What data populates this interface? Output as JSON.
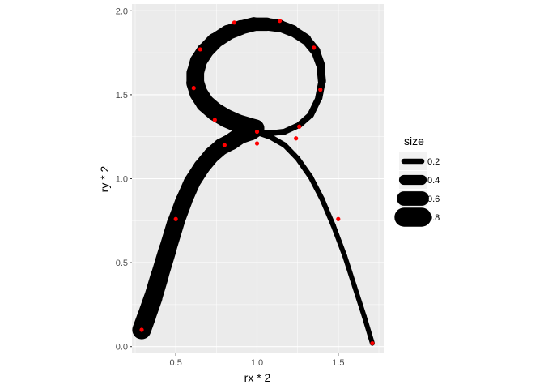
{
  "chart_data": {
    "type": "line",
    "xlabel": "rx * 2",
    "ylabel": "ry * 2",
    "xlim": [
      0.23,
      1.78
    ],
    "ylim": [
      -0.04,
      2.04
    ],
    "x_ticks": [
      0.5,
      1.0,
      1.5
    ],
    "x_tick_labels": [
      "0.5",
      "1.0",
      "1.5"
    ],
    "y_ticks": [
      0.0,
      0.5,
      1.0,
      1.5,
      2.0
    ],
    "y_tick_labels": [
      "0.0",
      "0.5",
      "1.0",
      "1.5",
      "2.0"
    ],
    "grid": true,
    "background": "#ebebeb",
    "grid_major_color": "#ffffff",
    "line_color": "#000000",
    "point_color": "#ff0000",
    "size_legend": {
      "title": "size",
      "position": "right",
      "entries": [
        {
          "label": "0.2",
          "size": 0.2
        },
        {
          "label": "0.4",
          "size": 0.4
        },
        {
          "label": "0.6",
          "size": 0.6
        },
        {
          "label": "0.8",
          "size": 0.8
        }
      ]
    },
    "path": {
      "x": [
        0.29,
        0.32,
        0.36,
        0.4,
        0.45,
        0.5,
        0.55,
        0.6,
        0.66,
        0.72,
        0.78,
        0.84,
        0.9,
        0.96,
        0.99,
        0.95,
        0.88,
        0.81,
        0.74,
        0.68,
        0.64,
        0.62,
        0.62,
        0.64,
        0.68,
        0.74,
        0.82,
        0.9,
        0.98,
        1.06,
        1.14,
        1.22,
        1.3,
        1.36,
        1.39,
        1.4,
        1.38,
        1.33,
        1.26,
        1.17,
        1.08,
        1.02,
        1.08,
        1.17,
        1.25,
        1.33,
        1.4,
        1.47,
        1.54,
        1.6,
        1.66,
        1.71
      ],
      "y": [
        0.1,
        0.18,
        0.29,
        0.42,
        0.58,
        0.74,
        0.87,
        0.98,
        1.07,
        1.14,
        1.19,
        1.22,
        1.26,
        1.28,
        1.3,
        1.31,
        1.33,
        1.36,
        1.4,
        1.45,
        1.51,
        1.57,
        1.63,
        1.7,
        1.76,
        1.82,
        1.87,
        1.9,
        1.92,
        1.92,
        1.91,
        1.88,
        1.83,
        1.76,
        1.68,
        1.58,
        1.48,
        1.38,
        1.32,
        1.28,
        1.27,
        1.27,
        1.25,
        1.2,
        1.12,
        1.01,
        0.88,
        0.72,
        0.54,
        0.36,
        0.18,
        0.02
      ],
      "size": [
        0.8,
        0.79,
        0.78,
        0.76,
        0.74,
        0.72,
        0.7,
        0.69,
        0.68,
        0.68,
        0.69,
        0.7,
        0.72,
        0.74,
        0.75,
        0.76,
        0.77,
        0.77,
        0.77,
        0.77,
        0.76,
        0.75,
        0.73,
        0.71,
        0.69,
        0.66,
        0.63,
        0.6,
        0.57,
        0.54,
        0.5,
        0.46,
        0.42,
        0.38,
        0.34,
        0.3,
        0.27,
        0.25,
        0.23,
        0.22,
        0.22,
        0.22,
        0.21,
        0.2,
        0.2,
        0.2,
        0.19,
        0.19,
        0.18,
        0.18,
        0.18,
        0.18
      ]
    },
    "points": {
      "x": [
        0.29,
        0.5,
        0.61,
        0.65,
        0.74,
        0.8,
        0.86,
        1.0,
        1.0,
        1.14,
        1.24,
        1.26,
        1.35,
        1.39,
        1.5,
        1.71
      ],
      "y": [
        0.1,
        0.76,
        1.54,
        1.77,
        1.35,
        1.2,
        1.93,
        1.28,
        1.21,
        1.94,
        1.24,
        1.31,
        1.78,
        1.53,
        0.76,
        0.02
      ]
    }
  }
}
